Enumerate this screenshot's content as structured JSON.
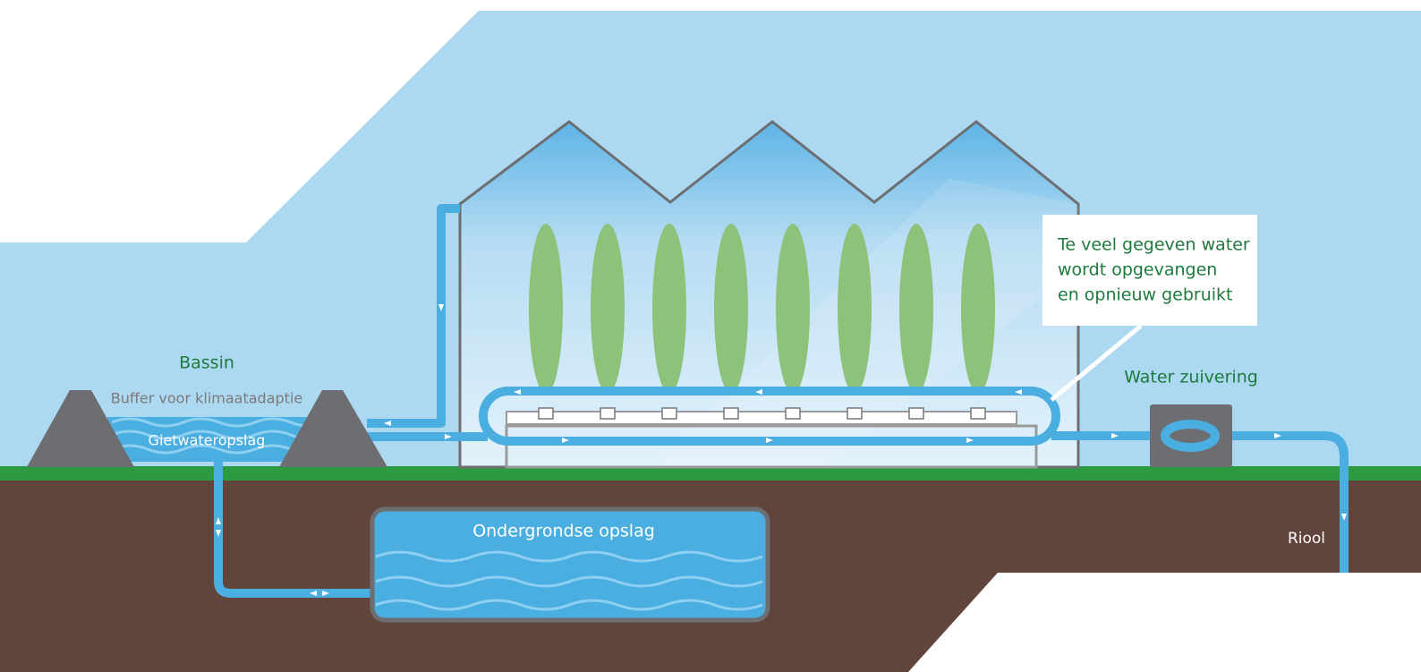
{
  "bassin": {
    "title": "Bassin",
    "subtitle": "Buffer voor klimaatadaptie",
    "water_label": "Gietwateropslag"
  },
  "underground": {
    "label": "Ondergrondse opslag"
  },
  "callout": {
    "lines": [
      "Te veel gegeven water",
      "wordt opgevangen",
      "en opnieuw gebruikt"
    ]
  },
  "purification": {
    "label": "Water zuivering"
  },
  "sewer": {
    "label": "Riool"
  }
}
